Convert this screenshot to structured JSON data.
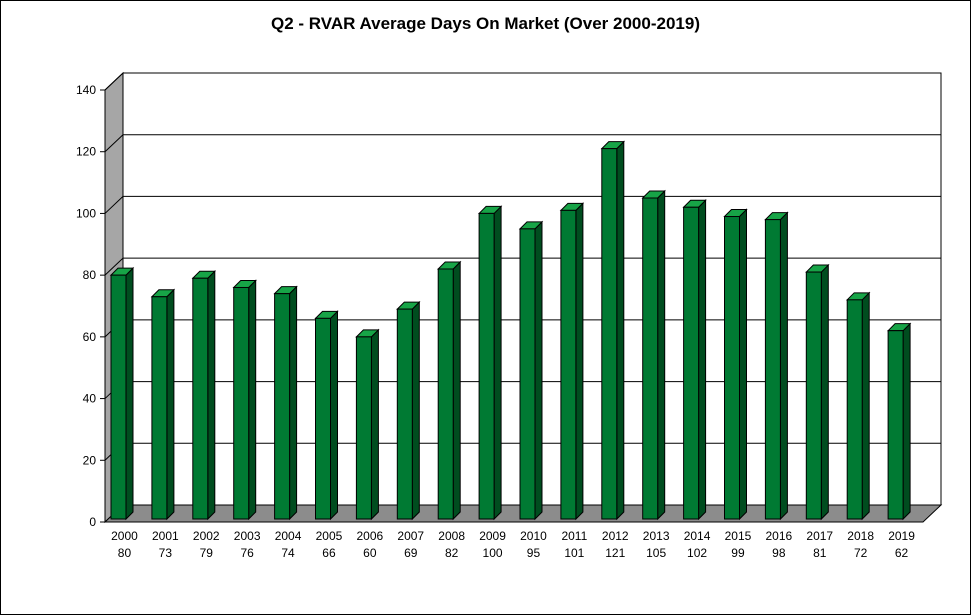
{
  "chart_data": {
    "type": "bar",
    "title": "Q2 - RVAR Average Days On Market (Over 2000-2019)",
    "categories": [
      "2000",
      "2001",
      "2002",
      "2003",
      "2004",
      "2005",
      "2006",
      "2007",
      "2008",
      "2009",
      "2010",
      "2011",
      "2012",
      "2013",
      "2014",
      "2015",
      "2016",
      "2017",
      "2018",
      "2019"
    ],
    "series": [
      {
        "values": [
          80,
          73,
          79,
          76,
          74,
          66,
          60,
          69,
          82,
          100,
          95,
          101,
          121,
          105,
          102,
          99,
          98,
          81,
          72,
          62
        ]
      }
    ],
    "data_labels": [
      "80",
      "73",
      "79",
      "76",
      "74",
      "66",
      "60",
      "69",
      "82",
      "100",
      "95",
      "101",
      "121",
      "105",
      "102",
      "99",
      "98",
      "81",
      "72",
      "62"
    ],
    "xlabel": "",
    "ylabel": "",
    "ylim": [
      0,
      140
    ],
    "yticks": [
      0,
      20,
      40,
      60,
      80,
      100,
      120,
      140
    ],
    "grid": true,
    "style": "3d",
    "colors": {
      "bar_front": "#007a33",
      "bar_side": "#004d1f",
      "bar_top": "#17a447",
      "back_wall": "#ffffff",
      "side_wall": "#a6a6a6",
      "floor": "#8c8c8c",
      "gridline": "#000000"
    }
  }
}
